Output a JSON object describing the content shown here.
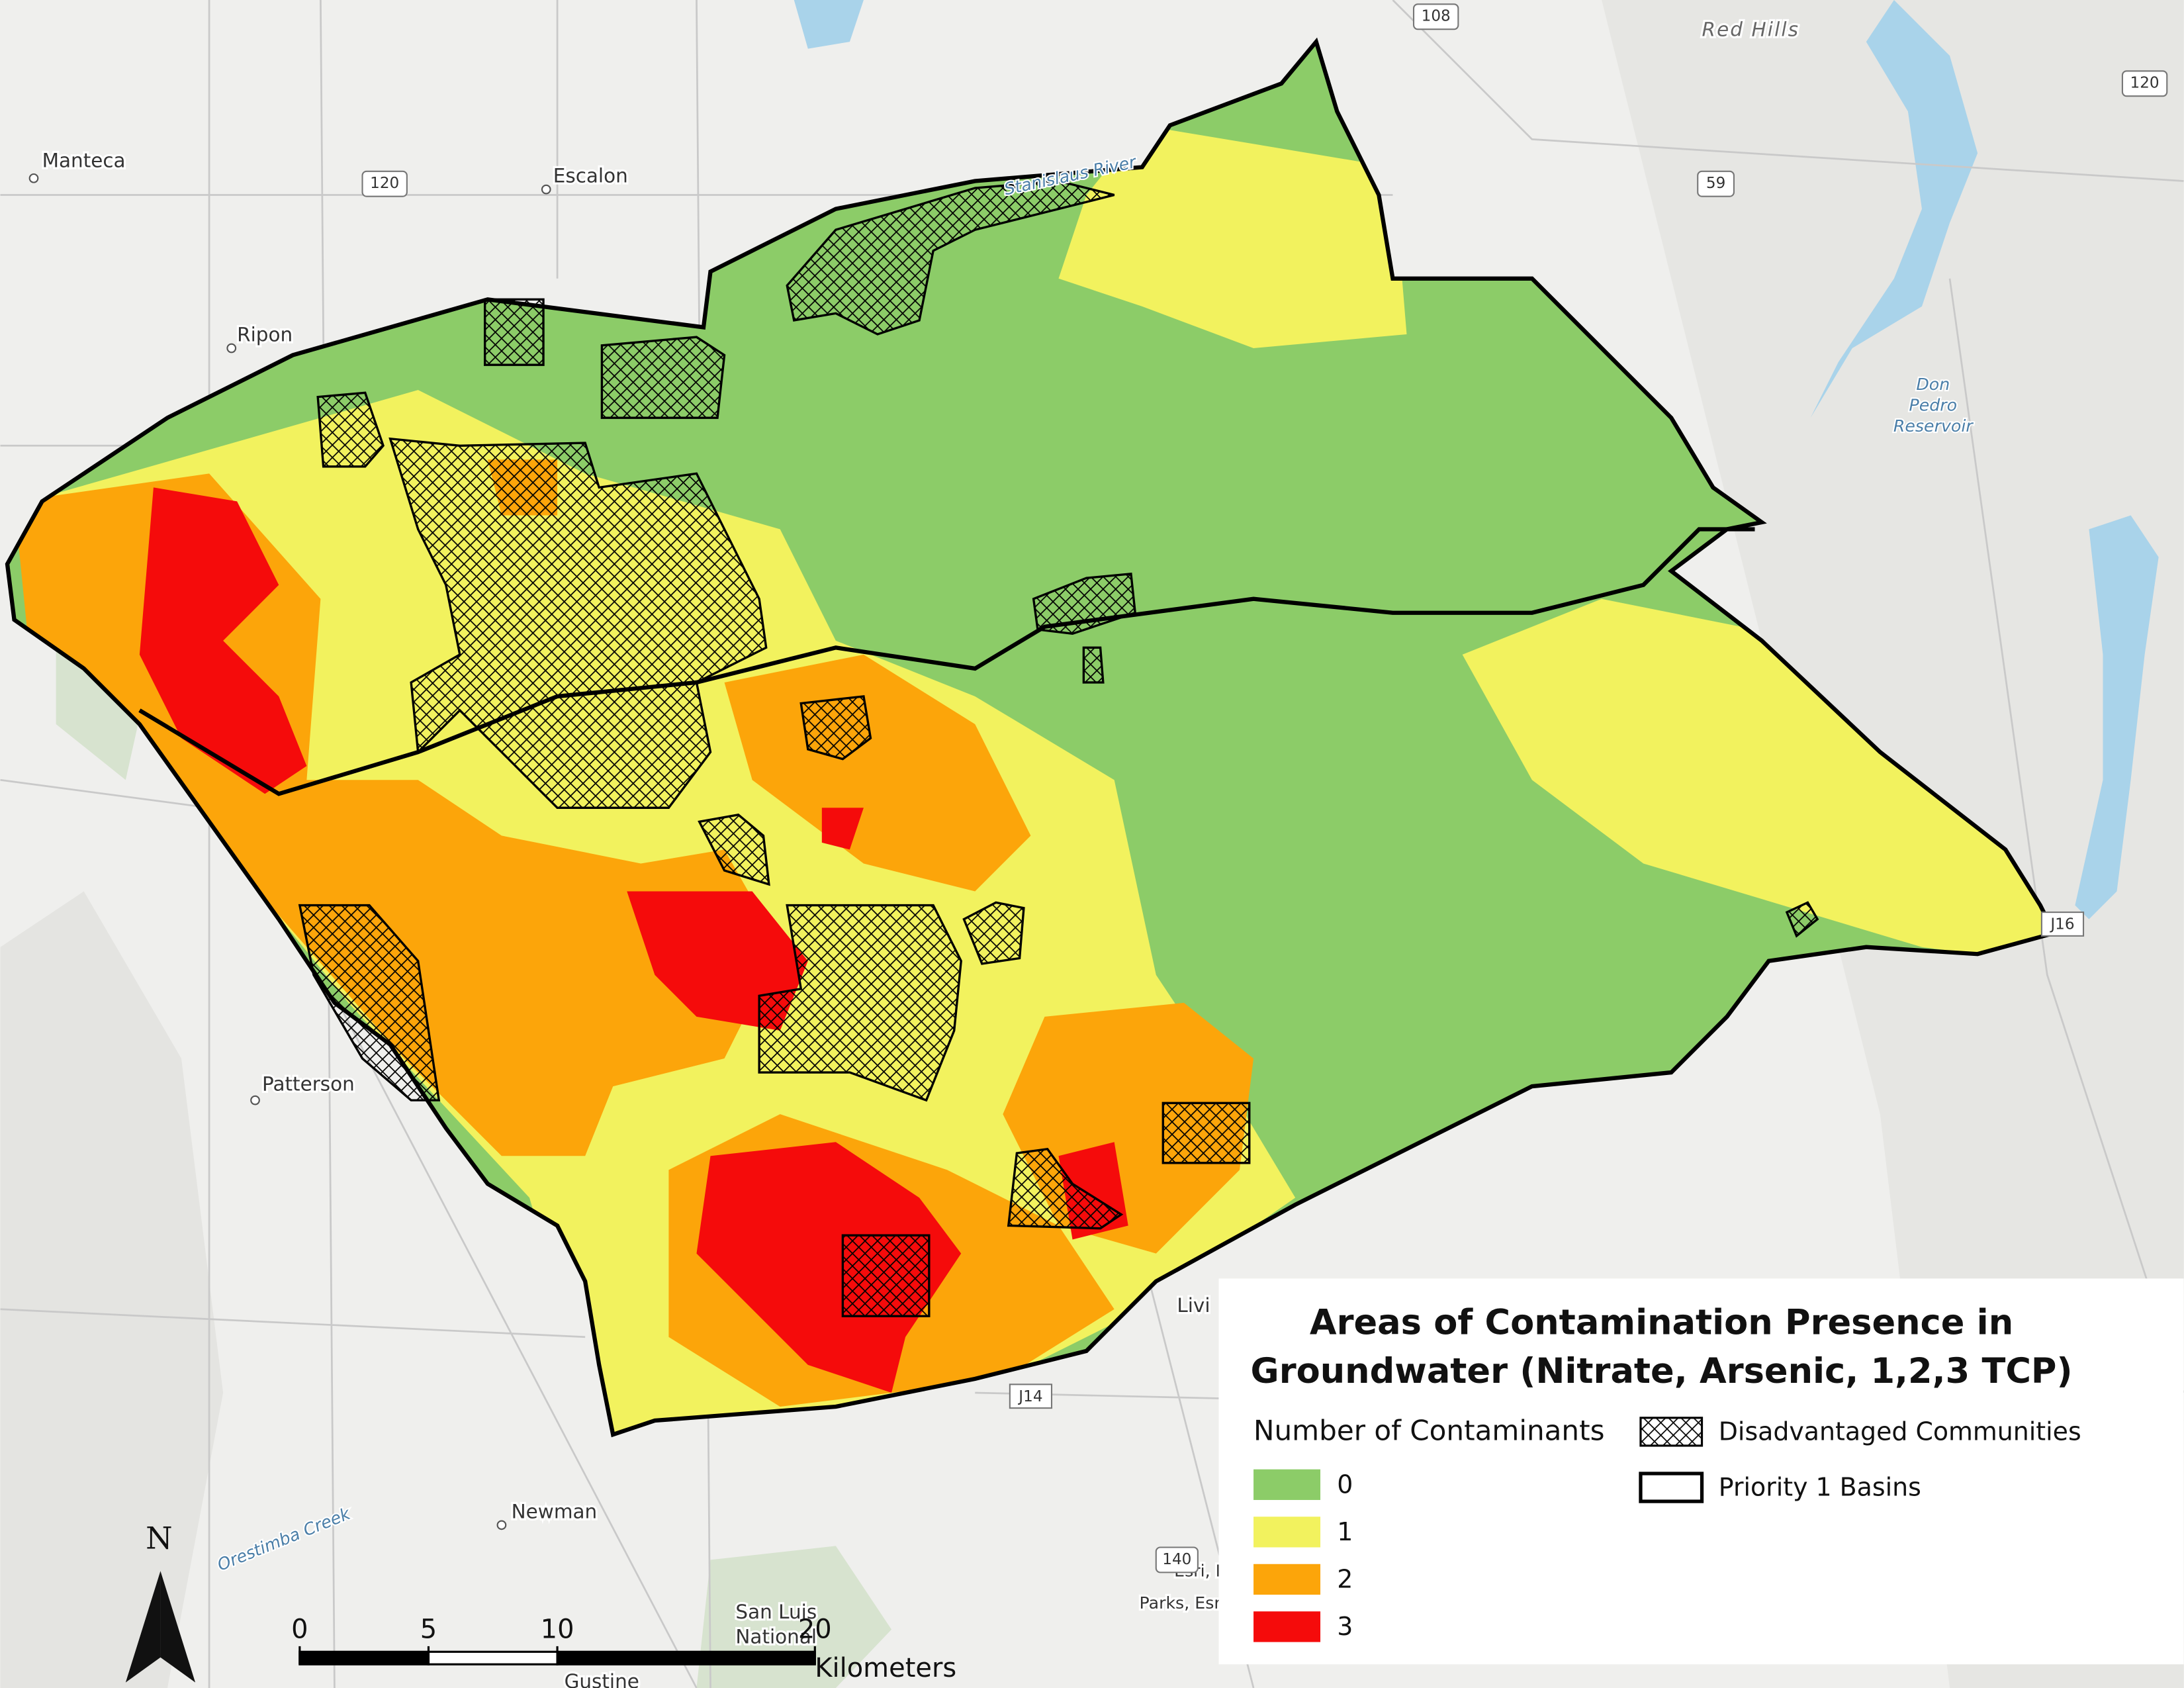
{
  "places": [
    "Manteca",
    "Escalon",
    "Ripon",
    "Patterson",
    "Newman",
    "Livi",
    "San Luis",
    "National",
    "Gustine",
    "Red Hills"
  ],
  "water_labels": [
    "Don",
    "Pedro",
    "Reservoir",
    "Stanislaus River",
    "Orestimba Creek"
  ],
  "roads": [
    "108",
    "120",
    "120",
    "59",
    "J16",
    "J14",
    "140"
  ],
  "attribution": [
    "Esri, NAS",
    "Parks, Esri, T"
  ],
  "north": "N",
  "legend": {
    "title_lines": [
      "Areas of Contamination Presence in",
      "Groundwater (Nitrate, Arsenic, 1,2,3 TCP)"
    ],
    "classes_title": "Number of Contaminants",
    "classes": [
      {
        "label": "0",
        "color": "#8ccc68"
      },
      {
        "label": "1",
        "color": "#f2f25e"
      },
      {
        "label": "2",
        "color": "#fca50a"
      },
      {
        "label": "3",
        "color": "#f50b0b"
      }
    ],
    "overlays": [
      "Disadvantaged Communities",
      "Priority 1 Basins"
    ]
  },
  "scale_bar": {
    "ticks": [
      0,
      5,
      10,
      20
    ],
    "unit": "Kilometers"
  }
}
